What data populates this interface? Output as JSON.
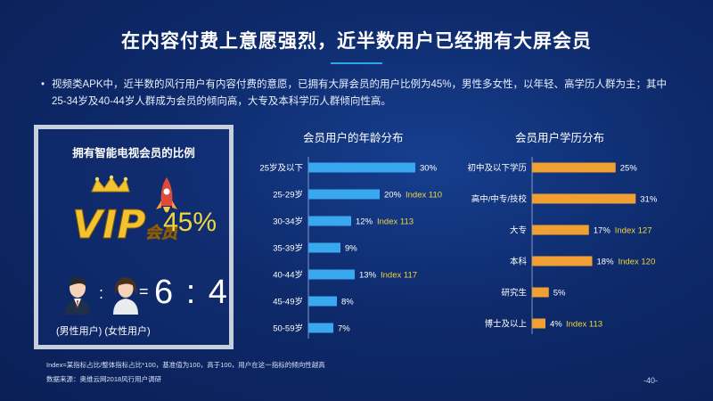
{
  "title": "在内容付费上意愿强烈，近半数用户已经拥有大屏会员",
  "summary": "视频类APK中，近半数的风行用户有内容付费的意愿，已拥有大屏会员的用户比例为45%，男性多女性，以年轻、高学历人群为主；其中25-34岁及40-44岁人群成为会员的倾向高，大专及本科学历人群倾向性高。",
  "bullet": "•",
  "card": {
    "title": "拥有智能电视会员的比例",
    "vip_text": "VIP",
    "vip_sub": "会员",
    "percent": "45%",
    "colon": ":",
    "equals": "=",
    "ratio": "6 : 4",
    "male_label": "(男性用户)",
    "female_label": "(女性用户)"
  },
  "colors": {
    "age_bar": "#3aa8ee",
    "edu_bar": "#f0a033",
    "index_text": "#f0d640"
  },
  "chart_data": [
    {
      "type": "bar",
      "orientation": "horizontal",
      "title": "会员用户的年龄分布",
      "categories": [
        "25岁及以下",
        "25-29岁",
        "30-34岁",
        "35-39岁",
        "40-44岁",
        "45-49岁",
        "50-59岁"
      ],
      "values": [
        30,
        20,
        12,
        9,
        13,
        8,
        7
      ],
      "value_labels": [
        "30%",
        "20%",
        "12%",
        "9%",
        "13%",
        "8%",
        "7%"
      ],
      "index_labels": [
        "",
        "Index 110",
        "Index 113",
        "",
        "Index 117",
        "",
        ""
      ]
    },
    {
      "type": "bar",
      "orientation": "horizontal",
      "title": "会员用户学历分布",
      "categories": [
        "初中及以下学历",
        "高中/中专/技校",
        "大专",
        "本科",
        "研究生",
        "博士及以上"
      ],
      "values": [
        25,
        31,
        17,
        18,
        5,
        4
      ],
      "value_labels": [
        "25%",
        "31%",
        "17%",
        "18%",
        "5%",
        "4%"
      ],
      "index_labels": [
        "",
        "",
        "Index 127",
        "Index 120",
        "",
        "Index 113"
      ]
    }
  ],
  "footnote_index": "Index=某指标占比/整体指标占比*100，基准值为100，高于100，用户在这一指标的倾向性越高",
  "footnote_source": "数据来源：奥维云网2018风行用户调研",
  "page_number": "-40-"
}
